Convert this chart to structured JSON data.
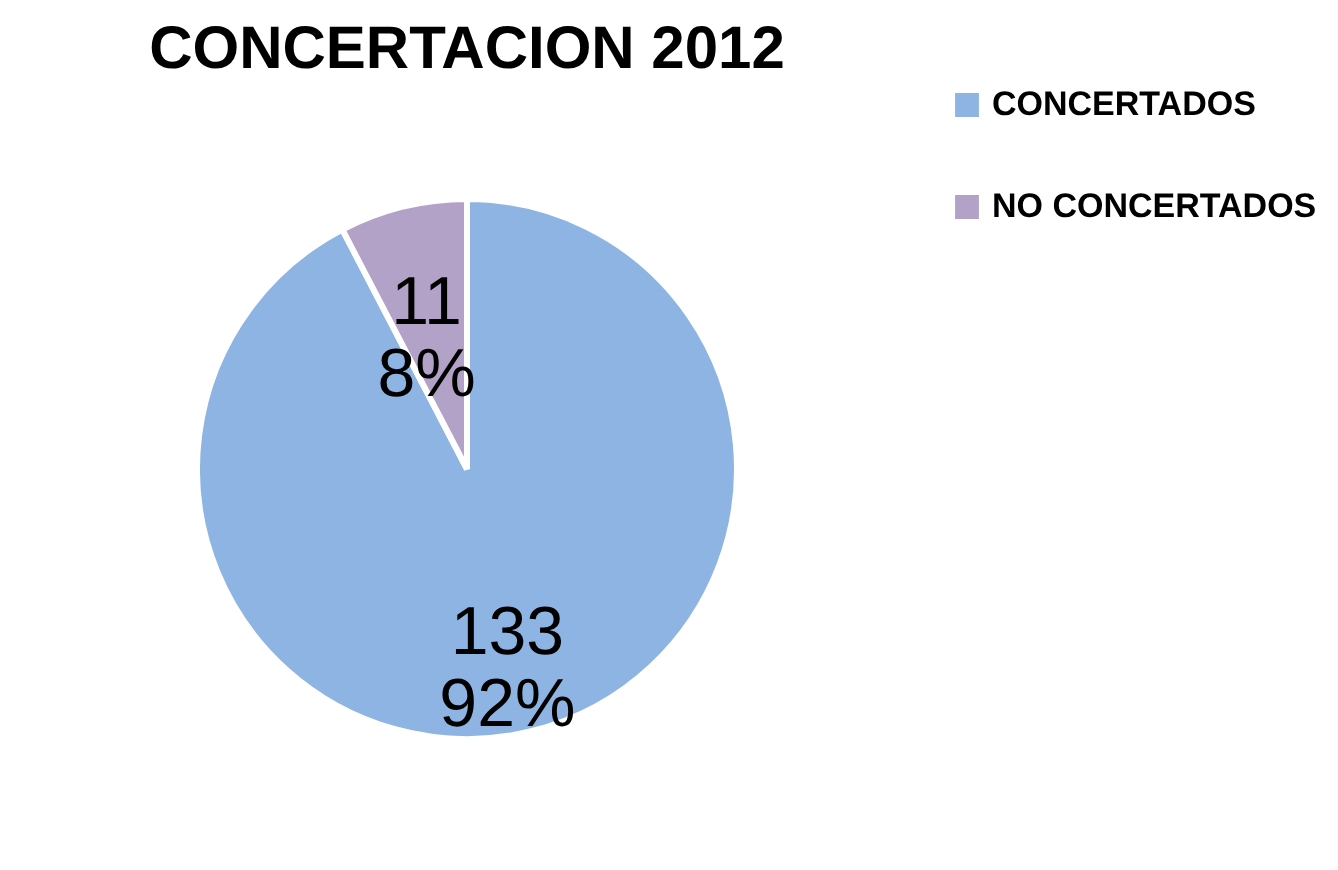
{
  "chart_data": {
    "type": "pie",
    "title": "CONCERTACION 2012",
    "categories": [
      "CONCERTADOS",
      "NO CONCERTADOS"
    ],
    "values": [
      133,
      11
    ],
    "colors": [
      "#8eb4e3",
      "#b3a2c7"
    ],
    "value_labels": [
      "133\n92%",
      "11\n8%"
    ],
    "legend": "right"
  }
}
